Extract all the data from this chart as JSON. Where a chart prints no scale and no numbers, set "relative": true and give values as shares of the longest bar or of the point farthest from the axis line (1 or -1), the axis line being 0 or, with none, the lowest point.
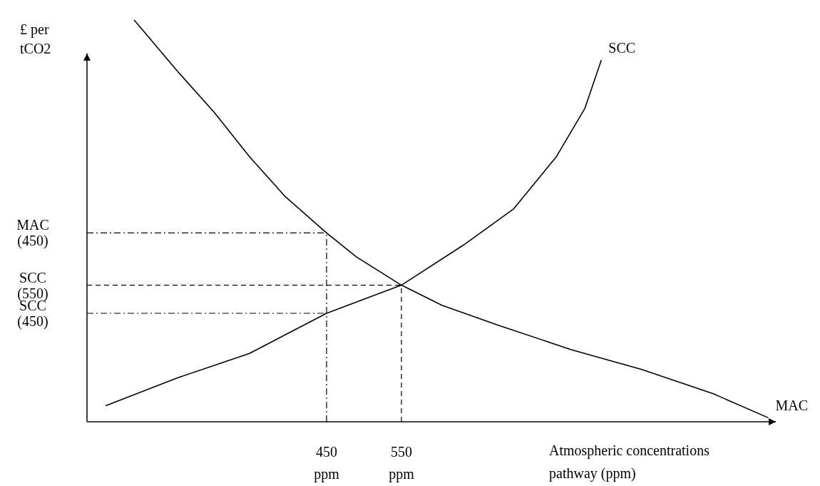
{
  "chart_data": {
    "type": "line",
    "relative": true,
    "ylabel": "£ per tCO2",
    "xlabel": "Atmospheric concentrations pathway (ppm)",
    "xlim": [
      130,
      1050
    ],
    "xticks": [
      {
        "value": 450,
        "label": "450 ppm"
      },
      {
        "value": 550,
        "label": "550 ppm"
      }
    ],
    "line_style": "solid",
    "marker": "none",
    "series": [
      {
        "name": "MAC",
        "color": "#000000",
        "x": [
          193,
          252,
          300,
          347,
          395,
          450,
          490,
          550,
          604,
          680,
          776,
          871,
          966,
          1040
        ],
        "values": [
          1.0,
          0.87,
          0.77,
          0.66,
          0.56,
          0.47,
          0.41,
          0.34,
          0.29,
          0.24,
          0.18,
          0.13,
          0.07,
          0.01
        ]
      },
      {
        "name": "SCC",
        "color": "#000000",
        "x": [
          155,
          252,
          347,
          450,
          550,
          633,
          700,
          757,
          795,
          817
        ],
        "values": [
          0.04,
          0.11,
          0.17,
          0.27,
          0.34,
          0.44,
          0.53,
          0.66,
          0.78,
          0.9
        ]
      }
    ],
    "ref_lines": [
      {
        "axis": "y",
        "value": 0.47,
        "label": "MAC (450)",
        "line_style": "dashdot",
        "color": "#000000"
      },
      {
        "axis": "y",
        "value": 0.34,
        "label": "SCC (550)",
        "line_style": "dashed",
        "color": "#000000"
      },
      {
        "axis": "y",
        "value": 0.27,
        "label": "SCC (450)",
        "line_style": "dashdot",
        "color": "#000000"
      },
      {
        "axis": "x",
        "value": 450,
        "line_style": "dashdot",
        "color": "#000000"
      },
      {
        "axis": "x",
        "value": 550,
        "line_style": "dashed",
        "color": "#000000"
      }
    ]
  }
}
